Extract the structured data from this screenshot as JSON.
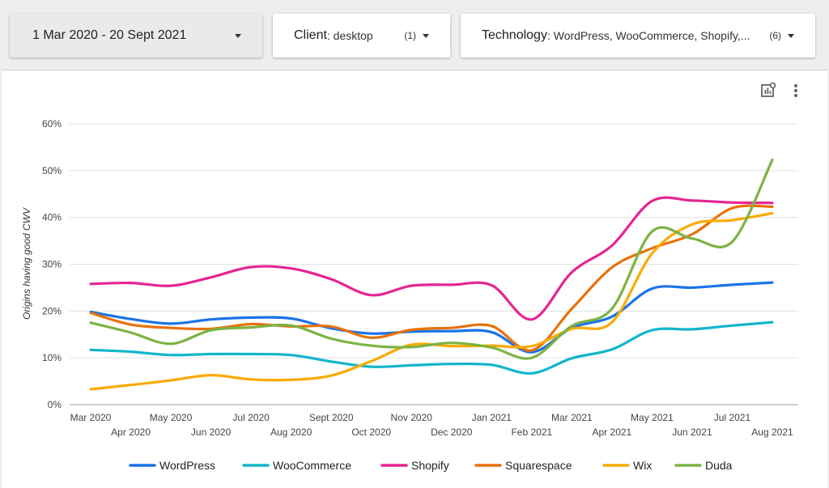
{
  "filters": {
    "date": {
      "label": "1 Mar 2020 - 20 Sept 2021"
    },
    "client": {
      "label": "Client",
      "value": ": desktop",
      "count": "(1)"
    },
    "technology": {
      "label": "Technology",
      "value": ": WordPress, WooCommerce, Shopify,...",
      "count": "(6)"
    }
  },
  "icons": {
    "explore": "chart-explore-icon",
    "more": "more-vert-icon",
    "dropdown": "caret-down-icon"
  },
  "chart_data": {
    "type": "line",
    "title": "",
    "xlabel": "",
    "ylabel": "Origins having good CWV",
    "ylim": [
      0,
      60
    ],
    "yticks": [
      "0%",
      "10%",
      "20%",
      "30%",
      "40%",
      "50%",
      "60%"
    ],
    "categories": [
      "Mar 2020",
      "Apr 2020",
      "May 2020",
      "Jun 2020",
      "Jul 2020",
      "Aug 2020",
      "Sept 2020",
      "Oct 2020",
      "Nov 2020",
      "Dec 2020",
      "Jan 2021",
      "Feb 2021",
      "Mar 2021",
      "Apr 2021",
      "May 2021",
      "Jun 2021",
      "Jul 2021",
      "Aug 2021"
    ],
    "grid": true,
    "legend_position": "bottom",
    "series": [
      {
        "name": "WordPress",
        "color": "#1a73e8",
        "values": [
          19.8,
          18.3,
          17.3,
          18.2,
          18.6,
          18.4,
          16.3,
          15.2,
          15.6,
          15.7,
          15.5,
          11.2,
          16.4,
          18.8,
          24.8,
          25.0,
          25.6,
          26.1
        ]
      },
      {
        "name": "WooCommerce",
        "color": "#12b5cb",
        "values": [
          11.7,
          11.3,
          10.6,
          10.8,
          10.8,
          10.6,
          9.2,
          8.1,
          8.4,
          8.7,
          8.5,
          6.7,
          9.9,
          11.8,
          15.9,
          16.1,
          16.9,
          17.6
        ]
      },
      {
        "name": "Shopify",
        "color": "#e52592",
        "values": [
          25.8,
          26.0,
          25.4,
          27.2,
          29.4,
          29.1,
          26.8,
          23.4,
          25.4,
          25.6,
          25.5,
          18.2,
          28.3,
          34.0,
          43.5,
          43.6,
          43.2,
          43.1
        ]
      },
      {
        "name": "Squarespace",
        "color": "#e8710a",
        "values": [
          19.6,
          17.1,
          16.4,
          16.2,
          17.2,
          16.7,
          16.7,
          14.3,
          16.0,
          16.4,
          16.8,
          11.6,
          20.5,
          29.3,
          33.4,
          36.4,
          42.0,
          42.3
        ]
      },
      {
        "name": "Wix",
        "color": "#f9ab00",
        "values": [
          3.3,
          4.2,
          5.2,
          6.3,
          5.4,
          5.3,
          6.2,
          9.3,
          12.8,
          12.5,
          12.6,
          12.5,
          16.2,
          17.6,
          32.3,
          38.5,
          39.4,
          40.9
        ]
      },
      {
        "name": "Duda",
        "color": "#7cb342",
        "values": [
          17.5,
          15.4,
          13.0,
          15.9,
          16.5,
          16.9,
          14.1,
          12.6,
          12.3,
          13.2,
          12.2,
          10.0,
          16.8,
          20.5,
          37.0,
          35.5,
          34.8,
          52.3
        ]
      }
    ]
  }
}
